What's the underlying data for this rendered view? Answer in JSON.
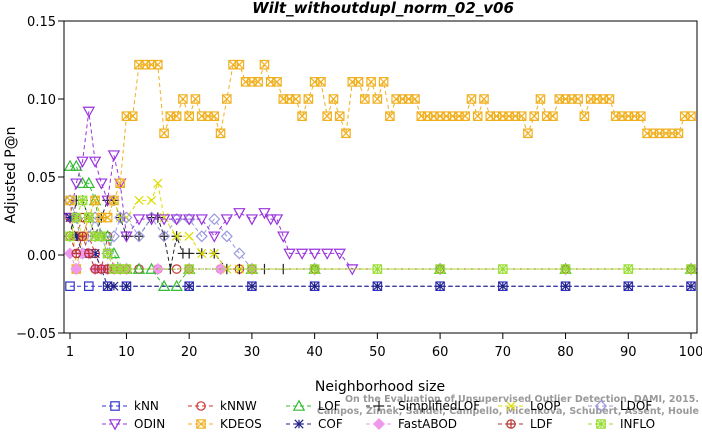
{
  "chart_data": {
    "type": "line",
    "title": "Wilt_withoutdupl_norm_02_v06",
    "xlabel": "Neighborhood size",
    "ylabel": "Adjusted P@n",
    "xlim": [
      1,
      100
    ],
    "ylim": [
      -0.05,
      0.15
    ],
    "xticks": [
      1,
      10,
      20,
      30,
      40,
      50,
      60,
      70,
      80,
      90,
      100
    ],
    "yticks": [
      -0.05,
      0.0,
      0.05,
      0.1,
      0.15
    ],
    "ytick_labels": [
      "−0.05",
      "0.00",
      "0.05",
      "0.10",
      "0.15"
    ],
    "grid": false,
    "legend_position": "bottom",
    "watermark": [
      "Campos, Zimek, Sander, Campello, Micenkova, Schubert, Assent, Houle",
      "On the Evaluation of Unsupervised Outlier Detection. DAMI, 2015."
    ],
    "series": [
      {
        "name": "kNN",
        "color": "#3333cc",
        "marker": "square",
        "segments": [
          {
            "x": [
              1,
              4,
              7,
              10,
              20,
              30,
              40,
              50,
              60,
              70,
              80,
              90,
              100
            ],
            "y": [
              -0.02,
              -0.02,
              -0.02,
              -0.02,
              -0.02,
              -0.02,
              -0.02,
              -0.02,
              -0.02,
              -0.02,
              -0.02,
              -0.02,
              -0.02
            ]
          }
        ]
      },
      {
        "name": "kNNW",
        "color": "#cc3333",
        "marker": "circle",
        "segments": [
          {
            "x": [
              1,
              2,
              3,
              4,
              5,
              6,
              7,
              8,
              9,
              10,
              12,
              15,
              18,
              20,
              25,
              28,
              30,
              40,
              60,
              80,
              100
            ],
            "y": [
              0.024,
              0.012,
              0.024,
              0.012,
              0.001,
              -0.009,
              0.012,
              -0.009,
              -0.009,
              -0.009,
              -0.009,
              -0.009,
              -0.009,
              -0.009,
              -0.009,
              -0.009,
              -0.009,
              -0.009,
              -0.009,
              -0.009,
              -0.009
            ]
          }
        ]
      },
      {
        "name": "LOF",
        "color": "#33bb33",
        "marker": "triangle-up",
        "segments": [
          {
            "x": [
              1,
              2,
              3,
              4,
              5,
              6,
              7,
              8,
              9,
              10,
              12,
              14,
              16,
              18,
              20,
              30,
              40,
              60,
              80,
              100
            ],
            "y": [
              0.057,
              0.057,
              0.046,
              0.046,
              0.035,
              0.012,
              0.012,
              0.001,
              -0.009,
              -0.009,
              -0.009,
              -0.009,
              -0.02,
              -0.02,
              -0.009,
              -0.009,
              -0.009,
              -0.009,
              -0.009,
              -0.009
            ]
          }
        ]
      },
      {
        "name": "SimplifiedLOF",
        "color": "#222222",
        "marker": "plus",
        "segments": [
          {
            "x": [
              1,
              2,
              3,
              4,
              5,
              6,
              7,
              8,
              9,
              10,
              12,
              14,
              15,
              16,
              17,
              18,
              19,
              20,
              22,
              24,
              26,
              28,
              30,
              32,
              35,
              40,
              60,
              80,
              100
            ],
            "y": [
              0.012,
              0.035,
              0.035,
              0.024,
              0.012,
              0.024,
              0.035,
              0.035,
              0.024,
              0.012,
              0.012,
              0.024,
              0.024,
              0.012,
              -0.009,
              0.012,
              0.001,
              0.001,
              0.001,
              0.001,
              -0.009,
              -0.009,
              -0.009,
              -0.009,
              -0.009,
              -0.009,
              -0.009,
              -0.009,
              -0.009
            ]
          }
        ]
      },
      {
        "name": "LoOP",
        "color": "#dddd00",
        "marker": "x",
        "segments": [
          {
            "x": [
              1,
              2,
              3,
              4,
              5,
              6,
              7,
              8,
              9,
              10,
              12,
              14,
              15,
              16,
              18,
              20,
              22,
              24,
              26,
              28,
              30,
              40,
              60,
              80,
              100
            ],
            "y": [
              0.035,
              0.024,
              0.012,
              0.024,
              0.035,
              0.024,
              0.024,
              0.035,
              0.024,
              0.024,
              0.035,
              0.035,
              0.046,
              0.024,
              0.012,
              0.012,
              0.001,
              0.001,
              -0.009,
              -0.009,
              -0.009,
              -0.009,
              -0.009,
              -0.009,
              -0.009
            ]
          }
        ]
      },
      {
        "name": "LDOF",
        "color": "#9999dd",
        "marker": "diamond",
        "segments": [
          {
            "x": [
              1,
              2,
              3,
              4,
              5,
              6,
              7,
              8,
              9,
              10,
              12,
              14,
              16,
              18,
              20,
              22,
              24,
              26,
              28,
              30,
              40,
              60,
              80,
              100
            ],
            "y": [
              0.035,
              0.024,
              0.001,
              0.012,
              0.024,
              0.012,
              0.001,
              0.012,
              0.024,
              0.024,
              0.012,
              0.024,
              0.012,
              0.023,
              0.023,
              0.012,
              0.023,
              0.012,
              0.001,
              -0.009,
              -0.009,
              -0.009,
              -0.009,
              -0.009
            ]
          }
        ]
      },
      {
        "name": "ODIN",
        "color": "#9933dd",
        "marker": "triangle-down",
        "segments": [
          {
            "x": [
              1,
              2,
              3,
              4,
              5,
              6,
              7,
              8,
              9,
              10,
              12,
              14,
              16,
              18,
              20,
              22,
              24,
              26,
              28,
              30,
              32,
              33,
              34,
              35,
              36,
              38,
              40,
              42,
              44,
              46
            ],
            "y": [
              0.024,
              0.046,
              0.06,
              0.092,
              0.06,
              0.046,
              0.035,
              0.064,
              0.046,
              0.012,
              0.023,
              0.023,
              0.023,
              0.023,
              0.023,
              0.023,
              0.012,
              0.023,
              0.027,
              0.023,
              0.027,
              0.023,
              0.023,
              0.012,
              0.001,
              0.001,
              0.001,
              0.001,
              0.001,
              -0.009
            ]
          }
        ]
      },
      {
        "name": "KDEOS",
        "color": "#f0b020",
        "marker": "square-x",
        "segments": [
          {
            "x": [
              1,
              2,
              3,
              4,
              5,
              6,
              7,
              8,
              9,
              10,
              11,
              12,
              13,
              14,
              15,
              16,
              17,
              18,
              19,
              20,
              21,
              22,
              23,
              24,
              25,
              26,
              27,
              28,
              29,
              30,
              31,
              32,
              33,
              34,
              35,
              36,
              37,
              38,
              39,
              40,
              41,
              42,
              43,
              44,
              45,
              46,
              47,
              48,
              49,
              50,
              51,
              52,
              53,
              54,
              55,
              56,
              57,
              58,
              59,
              60,
              61,
              62,
              63,
              64,
              65,
              66,
              67,
              68,
              69,
              70,
              71,
              72,
              73,
              74,
              75,
              76,
              77,
              78,
              79,
              80,
              81,
              82,
              83,
              84,
              85,
              86,
              87,
              88,
              89,
              90,
              91,
              92,
              93,
              94,
              95,
              96,
              97,
              98,
              99,
              100
            ],
            "y": [
              0.035,
              -0.009,
              0.012,
              0.024,
              0.035,
              0.024,
              0.024,
              0.035,
              0.046,
              0.089,
              0.089,
              0.122,
              0.122,
              0.122,
              0.122,
              0.078,
              0.089,
              0.089,
              0.1,
              0.089,
              0.1,
              0.089,
              0.089,
              0.089,
              0.078,
              0.1,
              0.122,
              0.122,
              0.111,
              0.111,
              0.111,
              0.122,
              0.111,
              0.111,
              0.1,
              0.1,
              0.1,
              0.089,
              0.1,
              0.111,
              0.111,
              0.089,
              0.1,
              0.089,
              0.078,
              0.111,
              0.111,
              0.1,
              0.111,
              0.1,
              0.111,
              0.089,
              0.1,
              0.1,
              0.1,
              0.1,
              0.089,
              0.089,
              0.089,
              0.089,
              0.089,
              0.089,
              0.089,
              0.089,
              0.1,
              0.089,
              0.1,
              0.089,
              0.089,
              0.089,
              0.089,
              0.089,
              0.089,
              0.078,
              0.089,
              0.1,
              0.089,
              0.089,
              0.1,
              0.1,
              0.1,
              0.1,
              0.089,
              0.1,
              0.1,
              0.1,
              0.1,
              0.089,
              0.089,
              0.089,
              0.089,
              0.089,
              0.078,
              0.078,
              0.078,
              0.078,
              0.078,
              0.078,
              0.089,
              0.089
            ]
          }
        ]
      },
      {
        "name": "COF",
        "color": "#222288",
        "marker": "star",
        "segments": [
          {
            "x": [
              1,
              2,
              3,
              4,
              5,
              6,
              7,
              8,
              10,
              20,
              30,
              40,
              50,
              60,
              70,
              80,
              90,
              100
            ],
            "y": [
              0.024,
              0.012,
              0.001,
              0.001,
              0.001,
              -0.009,
              -0.02,
              -0.02,
              -0.02,
              -0.02,
              -0.02,
              -0.02,
              -0.02,
              -0.02,
              -0.02,
              -0.02,
              -0.02,
              -0.02
            ]
          }
        ]
      },
      {
        "name": "FastABOD",
        "color": "#ee99ee",
        "marker": "diamond-filled",
        "segments": [
          {
            "x": [
              1,
              2,
              3,
              4,
              5,
              6,
              7,
              8,
              9,
              10,
              15,
              20,
              25,
              30
            ],
            "y": [
              0.001,
              -0.009,
              0.001,
              0.001,
              -0.009,
              -0.009,
              -0.009,
              -0.009,
              -0.009,
              -0.009,
              -0.009,
              -0.009,
              -0.009,
              -0.009
            ]
          }
        ]
      },
      {
        "name": "LDF",
        "color": "#bb3333",
        "marker": "circle-plus",
        "segments": [
          {
            "x": [
              1,
              2,
              3,
              4,
              5,
              6,
              7,
              8,
              9,
              10,
              20,
              30,
              40,
              60,
              80,
              100
            ],
            "y": [
              0.012,
              0.001,
              0.012,
              0.001,
              -0.009,
              -0.009,
              -0.009,
              -0.009,
              -0.009,
              -0.009,
              -0.009,
              -0.009,
              -0.009,
              -0.009,
              -0.009,
              -0.009
            ]
          }
        ]
      },
      {
        "name": "INFLO",
        "color": "#99dd33",
        "marker": "square-star",
        "segments": [
          {
            "x": [
              1,
              2,
              3,
              4,
              5,
              6,
              7,
              8,
              9,
              10,
              20,
              30,
              40,
              50,
              60,
              70,
              80,
              90,
              100
            ],
            "y": [
              0.012,
              0.024,
              0.035,
              0.024,
              0.012,
              0.012,
              0.001,
              -0.009,
              -0.009,
              -0.009,
              -0.009,
              -0.009,
              -0.009,
              -0.009,
              -0.009,
              -0.009,
              -0.009,
              -0.009,
              -0.009
            ]
          }
        ]
      }
    ]
  }
}
